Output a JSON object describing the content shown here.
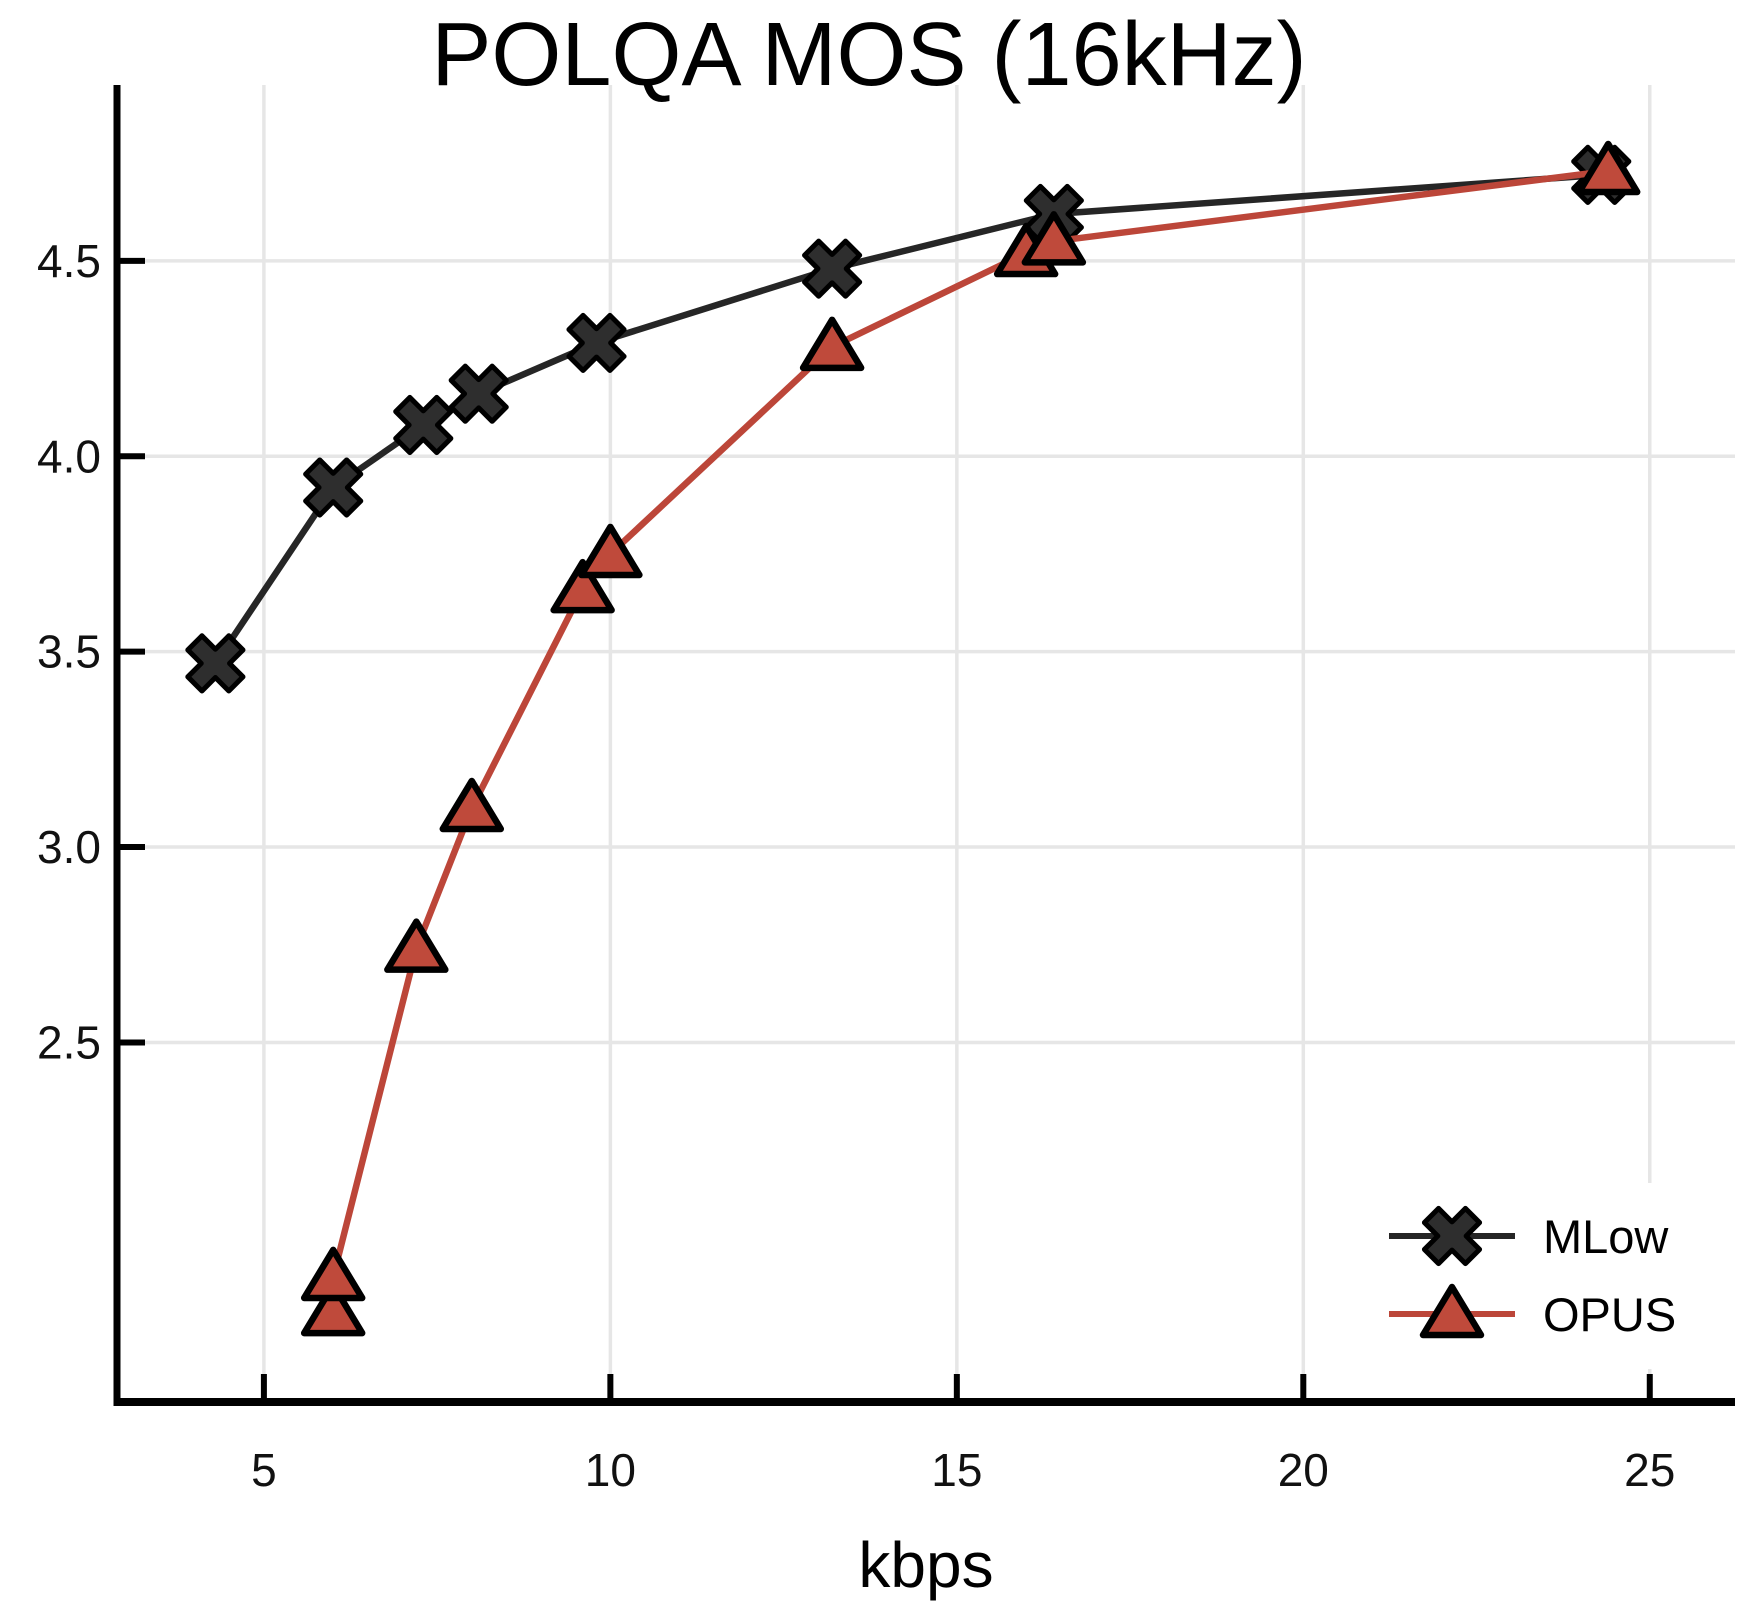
{
  "chart_data": {
    "type": "line",
    "title": "POLQA MOS (16kHz)",
    "xlabel": "kbps",
    "ylabel": "",
    "xlim": [
      2.88,
      26.23
    ],
    "ylim": [
      1.58,
      4.95
    ],
    "x_ticks": [
      "5",
      "10",
      "15",
      "20",
      "25"
    ],
    "y_ticks": [
      "2.5",
      "3.0",
      "3.5",
      "4.0",
      "4.5"
    ],
    "grid": true,
    "legend_position": "bottom-right",
    "series": [
      {
        "name": "MLow",
        "marker": "x-cross",
        "color": "#262626",
        "marker_fill": "#2e2e2e",
        "marker_edge": "#000000",
        "points": [
          [
            4.3,
            3.47
          ],
          [
            6.0,
            3.92
          ],
          [
            7.3,
            4.08
          ],
          [
            8.1,
            4.16
          ],
          [
            9.8,
            4.29
          ],
          [
            13.2,
            4.48
          ],
          [
            16.4,
            4.62
          ],
          [
            24.3,
            4.72
          ]
        ]
      },
      {
        "name": "OPUS",
        "marker": "triangle-up",
        "color": "#bc4639",
        "marker_fill": "#bf4a3b",
        "marker_edge": "#000000",
        "points": [
          [
            6.0,
            1.81
          ],
          [
            6.0,
            1.9
          ],
          [
            7.2,
            2.74
          ],
          [
            8.0,
            3.1
          ],
          [
            9.6,
            3.66
          ],
          [
            10.0,
            3.75
          ],
          [
            13.2,
            4.28
          ],
          [
            16.0,
            4.52
          ],
          [
            16.4,
            4.55
          ],
          [
            24.4,
            4.73
          ]
        ]
      }
    ],
    "style": {
      "grid_color": "#e6e6e6",
      "axis_color": "#000000",
      "tick_label_color": "#111111",
      "background": "#ffffff"
    }
  },
  "legend": {
    "items": [
      {
        "label": "MLow"
      },
      {
        "label": "OPUS"
      }
    ]
  }
}
